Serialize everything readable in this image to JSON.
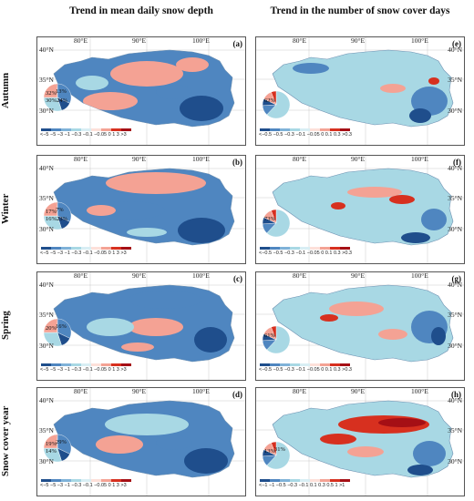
{
  "columns": {
    "left": "Trend in mean daily snow depth",
    "right": "Trend in the number of snow cover days"
  },
  "rows": [
    "Autumn",
    "Winter",
    "Spring",
    "Snow cover year"
  ],
  "axis": {
    "lon": [
      "80°E",
      "90°E",
      "100°E"
    ],
    "lat": [
      "40°N",
      "35°N",
      "30°N"
    ]
  },
  "colorbar": {
    "depth_ticks": "<−5 −5 −3 −1 −0.3 −0.1 −0.05 0 1 3 >3",
    "days_ticks": "<−0.5 −0.5 −0.3 −0.1 −0.05 0 0.1 0.3 >0.3",
    "days_ticks_h": "<−1 −1 −0.5 −0.3 −0.1 0.1 0.3 0.5 1 >1"
  },
  "colors": {
    "dark_blue": "#1f4e8c",
    "mid_blue": "#4f86c0",
    "light_blue": "#a8d8e4",
    "pink": "#f4a294",
    "red": "#d7301f",
    "dark_red": "#a50f15"
  },
  "panels": [
    {
      "letter": "(a)",
      "pie": [
        "32%",
        "13%",
        "30%",
        "24%"
      ]
    },
    {
      "letter": "(e)",
      "pie": [
        "62%"
      ]
    },
    {
      "letter": "(b)",
      "pie": [
        "17%",
        "7%",
        "16%",
        "23%"
      ]
    },
    {
      "letter": "(f)",
      "pie": [
        "73%"
      ]
    },
    {
      "letter": "(c)",
      "pie": [
        "20%",
        "16%"
      ]
    },
    {
      "letter": "(g)",
      "pie": [
        "61%"
      ]
    },
    {
      "letter": "(d)",
      "pie": [
        "19%",
        "29%",
        "14%"
      ]
    },
    {
      "letter": "(h)",
      "pie": [
        "13%",
        "31%"
      ]
    }
  ]
}
